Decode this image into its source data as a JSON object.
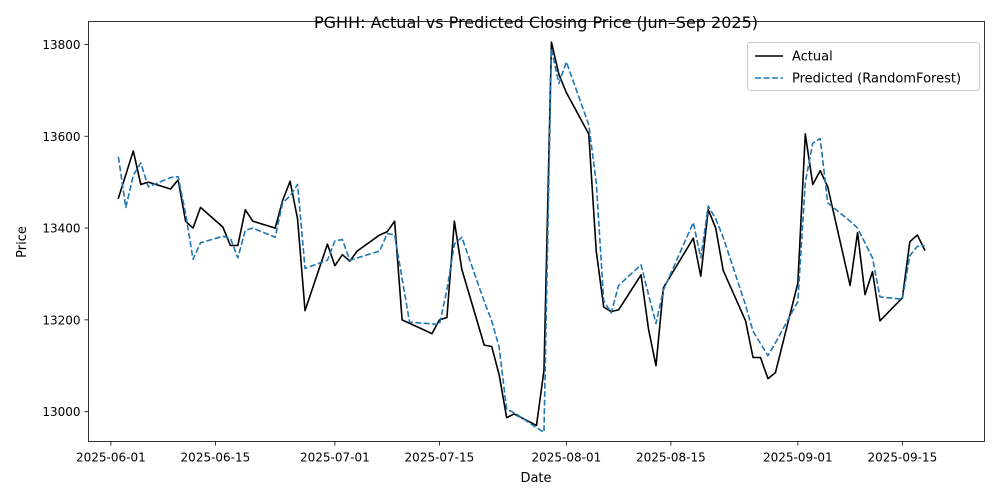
{
  "chart_data": {
    "type": "line",
    "title": "PGHH: Actual vs Predicted Closing Price (Jun–Sep 2025)",
    "xlabel": "Date",
    "ylabel": "Price",
    "x_ticks": [
      "2025-06-01",
      "2025-06-15",
      "2025-07-01",
      "2025-07-15",
      "2025-08-01",
      "2025-08-15",
      "2025-09-01",
      "2025-09-15"
    ],
    "y_ticks": [
      13000,
      13200,
      13400,
      13600,
      13800
    ],
    "xlim": [
      "2025-05-29",
      "2025-09-26"
    ],
    "ylim": [
      12935,
      13850
    ],
    "grid": false,
    "legend_position": "top-right",
    "series": [
      {
        "name": "Actual",
        "color": "#000000",
        "style": "solid",
        "points": [
          [
            "2025-06-02",
            13465
          ],
          [
            "2025-06-04",
            13568
          ],
          [
            "2025-06-05",
            13495
          ],
          [
            "2025-06-06",
            13500
          ],
          [
            "2025-06-09",
            13485
          ],
          [
            "2025-06-10",
            13505
          ],
          [
            "2025-06-11",
            13415
          ],
          [
            "2025-06-12",
            13400
          ],
          [
            "2025-06-13",
            13445
          ],
          [
            "2025-06-16",
            13402
          ],
          [
            "2025-06-17",
            13362
          ],
          [
            "2025-06-18",
            13362
          ],
          [
            "2025-06-19",
            13440
          ],
          [
            "2025-06-20",
            13415
          ],
          [
            "2025-06-23",
            13400
          ],
          [
            "2025-06-24",
            13460
          ],
          [
            "2025-06-25",
            13502
          ],
          [
            "2025-06-26",
            13420
          ],
          [
            "2025-06-27",
            13220
          ],
          [
            "2025-06-30",
            13365
          ],
          [
            "2025-07-01",
            13318
          ],
          [
            "2025-07-02",
            13342
          ],
          [
            "2025-07-03",
            13328
          ],
          [
            "2025-07-04",
            13350
          ],
          [
            "2025-07-07",
            13385
          ],
          [
            "2025-07-08",
            13392
          ],
          [
            "2025-07-09",
            13415
          ],
          [
            "2025-07-10",
            13200
          ],
          [
            "2025-07-14",
            13170
          ],
          [
            "2025-07-15",
            13200
          ],
          [
            "2025-07-16",
            13205
          ],
          [
            "2025-07-17",
            13415
          ],
          [
            "2025-07-18",
            13310
          ],
          [
            "2025-07-21",
            13145
          ],
          [
            "2025-07-22",
            13142
          ],
          [
            "2025-07-23",
            13080
          ],
          [
            "2025-07-24",
            12987
          ],
          [
            "2025-07-25",
            12995
          ],
          [
            "2025-07-28",
            12970
          ],
          [
            "2025-07-29",
            13090
          ],
          [
            "2025-07-30",
            13805
          ],
          [
            "2025-07-31",
            13735
          ],
          [
            "2025-08-01",
            13695
          ],
          [
            "2025-08-04",
            13605
          ],
          [
            "2025-08-05",
            13350
          ],
          [
            "2025-08-06",
            13228
          ],
          [
            "2025-08-07",
            13218
          ],
          [
            "2025-08-08",
            13222
          ],
          [
            "2025-08-11",
            13298
          ],
          [
            "2025-08-12",
            13180
          ],
          [
            "2025-08-13",
            13100
          ],
          [
            "2025-08-14",
            13270
          ],
          [
            "2025-08-18",
            13378
          ],
          [
            "2025-08-19",
            13295
          ],
          [
            "2025-08-20",
            13440
          ],
          [
            "2025-08-21",
            13400
          ],
          [
            "2025-08-22",
            13308
          ],
          [
            "2025-08-25",
            13198
          ],
          [
            "2025-08-26",
            13118
          ],
          [
            "2025-08-27",
            13118
          ],
          [
            "2025-08-28",
            13072
          ],
          [
            "2025-08-29",
            13085
          ],
          [
            "2025-09-01",
            13280
          ],
          [
            "2025-09-02",
            13605
          ],
          [
            "2025-09-03",
            13495
          ],
          [
            "2025-09-04",
            13525
          ],
          [
            "2025-09-05",
            13490
          ],
          [
            "2025-09-08",
            13275
          ],
          [
            "2025-09-09",
            13390
          ],
          [
            "2025-09-10",
            13255
          ],
          [
            "2025-09-11",
            13305
          ],
          [
            "2025-09-12",
            13198
          ],
          [
            "2025-09-15",
            13248
          ],
          [
            "2025-09-16",
            13370
          ],
          [
            "2025-09-17",
            13385
          ],
          [
            "2025-09-18",
            13352
          ]
        ]
      },
      {
        "name": "Predicted (RandomForest)",
        "color": "#1f77b4",
        "style": "dashed",
        "points": [
          [
            "2025-06-02",
            13555
          ],
          [
            "2025-06-03",
            13445
          ],
          [
            "2025-06-04",
            13515
          ],
          [
            "2025-06-05",
            13542
          ],
          [
            "2025-06-06",
            13490
          ],
          [
            "2025-06-09",
            13510
          ],
          [
            "2025-06-10",
            13512
          ],
          [
            "2025-06-11",
            13432
          ],
          [
            "2025-06-12",
            13332
          ],
          [
            "2025-06-13",
            13368
          ],
          [
            "2025-06-16",
            13382
          ],
          [
            "2025-06-17",
            13378
          ],
          [
            "2025-06-18",
            13335
          ],
          [
            "2025-06-19",
            13395
          ],
          [
            "2025-06-20",
            13400
          ],
          [
            "2025-06-23",
            13380
          ],
          [
            "2025-06-24",
            13455
          ],
          [
            "2025-06-25",
            13470
          ],
          [
            "2025-06-26",
            13495
          ],
          [
            "2025-06-27",
            13312
          ],
          [
            "2025-06-30",
            13330
          ],
          [
            "2025-07-01",
            13372
          ],
          [
            "2025-07-02",
            13375
          ],
          [
            "2025-07-03",
            13330
          ],
          [
            "2025-07-04",
            13335
          ],
          [
            "2025-07-07",
            13350
          ],
          [
            "2025-07-08",
            13388
          ],
          [
            "2025-07-09",
            13385
          ],
          [
            "2025-07-10",
            13290
          ],
          [
            "2025-07-11",
            13195
          ],
          [
            "2025-07-15",
            13190
          ],
          [
            "2025-07-16",
            13265
          ],
          [
            "2025-07-17",
            13365
          ],
          [
            "2025-07-18",
            13380
          ],
          [
            "2025-07-21",
            13240
          ],
          [
            "2025-07-22",
            13198
          ],
          [
            "2025-07-23",
            13140
          ],
          [
            "2025-07-24",
            13005
          ],
          [
            "2025-07-25",
            12998
          ],
          [
            "2025-07-28",
            12965
          ],
          [
            "2025-07-29",
            12955
          ],
          [
            "2025-07-30",
            13790
          ],
          [
            "2025-07-31",
            13715
          ],
          [
            "2025-08-01",
            13762
          ],
          [
            "2025-08-04",
            13625
          ],
          [
            "2025-08-05",
            13500
          ],
          [
            "2025-08-06",
            13242
          ],
          [
            "2025-08-07",
            13215
          ],
          [
            "2025-08-08",
            13275
          ],
          [
            "2025-08-11",
            13320
          ],
          [
            "2025-08-12",
            13255
          ],
          [
            "2025-08-13",
            13192
          ],
          [
            "2025-08-14",
            13265
          ],
          [
            "2025-08-18",
            13412
          ],
          [
            "2025-08-19",
            13335
          ],
          [
            "2025-08-20",
            13448
          ],
          [
            "2025-08-21",
            13420
          ],
          [
            "2025-08-22",
            13380
          ],
          [
            "2025-08-25",
            13232
          ],
          [
            "2025-08-26",
            13175
          ],
          [
            "2025-08-28",
            13122
          ],
          [
            "2025-08-29",
            13150
          ],
          [
            "2025-09-01",
            13240
          ],
          [
            "2025-09-02",
            13500
          ],
          [
            "2025-09-03",
            13585
          ],
          [
            "2025-09-04",
            13595
          ],
          [
            "2025-09-05",
            13455
          ],
          [
            "2025-09-08",
            13415
          ],
          [
            "2025-09-09",
            13400
          ],
          [
            "2025-09-11",
            13335
          ],
          [
            "2025-09-12",
            13250
          ],
          [
            "2025-09-15",
            13245
          ],
          [
            "2025-09-16",
            13340
          ],
          [
            "2025-09-17",
            13360
          ],
          [
            "2025-09-18",
            13362
          ]
        ]
      }
    ]
  }
}
